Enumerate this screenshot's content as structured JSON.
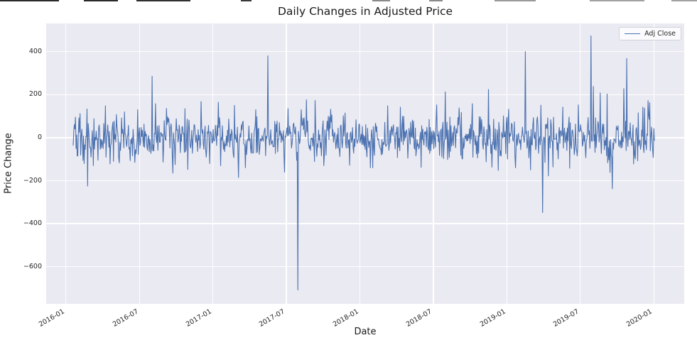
{
  "style": {
    "figure_bg": "#ffffff",
    "axes_bg": "#eaeaf2",
    "grid_color": "#ffffff",
    "line_color": "#4c72b0",
    "text_color": "#262626"
  },
  "chart_data": {
    "type": "line",
    "title": "Daily Changes in Adjusted Price",
    "xlabel": "Date",
    "ylabel": "Price Change",
    "legend": [
      "Adj Close"
    ],
    "legend_position": "upper right",
    "grid": true,
    "x_tick_labels": [
      "2016-01",
      "2016-07",
      "2017-01",
      "2017-07",
      "2018-01",
      "2018-07",
      "2019-01",
      "2019-07",
      "2020-01"
    ],
    "y_ticks": [
      400,
      200,
      0,
      -200,
      -400,
      -600
    ],
    "ylim": [
      -772,
      531
    ],
    "x_range": [
      "2016-01-19",
      "2020-01-31"
    ],
    "n_points": 1010,
    "line_color": "#4c72b0",
    "noise": {
      "seed": 20160119,
      "std": 50,
      "clamp": 165
    },
    "major_events": [
      {
        "date": "2016-02",
        "value": -225
      },
      {
        "date": "2016-08",
        "value": 285
      },
      {
        "date": "2017-05",
        "value": 380
      },
      {
        "date": "2017-08",
        "value": -708
      },
      {
        "date": "2018-07",
        "value": 213
      },
      {
        "date": "2018-11",
        "value": 224
      },
      {
        "date": "2019-02",
        "value": 400
      },
      {
        "date": "2019-04",
        "value": -348
      },
      {
        "date": "2019-08",
        "value": 473
      },
      {
        "date": "2019-11",
        "value": 368
      }
    ],
    "spikes": [
      [
        2,
        60
      ],
      [
        4,
        95
      ],
      [
        7,
        -85
      ],
      [
        12,
        112
      ],
      [
        19,
        -120
      ],
      [
        25,
        -225
      ],
      [
        35,
        -130
      ],
      [
        56,
        148
      ],
      [
        70,
        -110
      ],
      [
        89,
        120
      ],
      [
        107,
        -115
      ],
      [
        137,
        285
      ],
      [
        143,
        158
      ],
      [
        177,
        -125
      ],
      [
        194,
        135
      ],
      [
        199,
        -148
      ],
      [
        222,
        168
      ],
      [
        237,
        -120
      ],
      [
        256,
        -130
      ],
      [
        280,
        150
      ],
      [
        287,
        -185
      ],
      [
        299,
        -140
      ],
      [
        317,
        130
      ],
      [
        338,
        380
      ],
      [
        367,
        -160
      ],
      [
        373,
        135
      ],
      [
        390,
        -708
      ],
      [
        396,
        130
      ],
      [
        405,
        176
      ],
      [
        420,
        173
      ],
      [
        447,
        132
      ],
      [
        480,
        -128
      ],
      [
        516,
        -140
      ],
      [
        546,
        148
      ],
      [
        568,
        142
      ],
      [
        604,
        -138
      ],
      [
        631,
        152
      ],
      [
        646,
        213
      ],
      [
        670,
        138
      ],
      [
        693,
        158
      ],
      [
        721,
        224
      ],
      [
        738,
        -152
      ],
      [
        756,
        132
      ],
      [
        785,
        400
      ],
      [
        794,
        -150
      ],
      [
        815,
        -348
      ],
      [
        825,
        -178
      ],
      [
        850,
        142
      ],
      [
        862,
        -142
      ],
      [
        877,
        152
      ],
      [
        899,
        473
      ],
      [
        903,
        238
      ],
      [
        915,
        208
      ],
      [
        927,
        203
      ],
      [
        932,
        -162
      ],
      [
        936,
        -238
      ],
      [
        956,
        228
      ],
      [
        961,
        368
      ],
      [
        973,
        -122
      ],
      [
        989,
        142
      ],
      [
        998,
        172
      ],
      [
        1001,
        162
      ],
      [
        1007,
        -92
      ]
    ]
  }
}
